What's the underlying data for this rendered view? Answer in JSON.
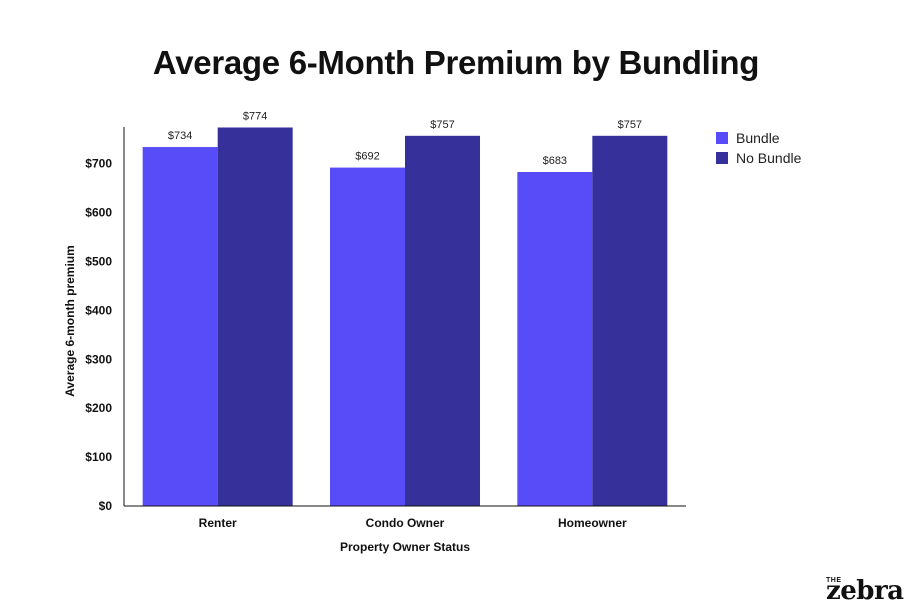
{
  "chart_data": {
    "type": "bar",
    "title": "Average 6-Month Premium by Bundling",
    "xlabel": "Property Owner Status",
    "ylabel": "Average 6-month premium",
    "categories": [
      "Renter",
      "Condo Owner",
      "Homeowner"
    ],
    "series": [
      {
        "name": "Bundle",
        "values": [
          734,
          692,
          683
        ],
        "labels": [
          "$734",
          "$692",
          "$683"
        ],
        "color": "#574cf8"
      },
      {
        "name": "No Bundle",
        "values": [
          774,
          757,
          757
        ],
        "labels": [
          "$774",
          "$757",
          "$757"
        ],
        "color": "#36309b"
      }
    ],
    "ylim": [
      0,
      775
    ],
    "yticks": [
      0,
      100,
      200,
      300,
      400,
      500,
      600,
      700
    ],
    "ytick_labels": [
      "$0",
      "$100",
      "$200",
      "$300",
      "$400",
      "$500",
      "$600",
      "$700"
    ],
    "grid": false,
    "legend_position": "top-right"
  },
  "branding": {
    "logo_small": "THE",
    "logo_main": "zebra"
  }
}
